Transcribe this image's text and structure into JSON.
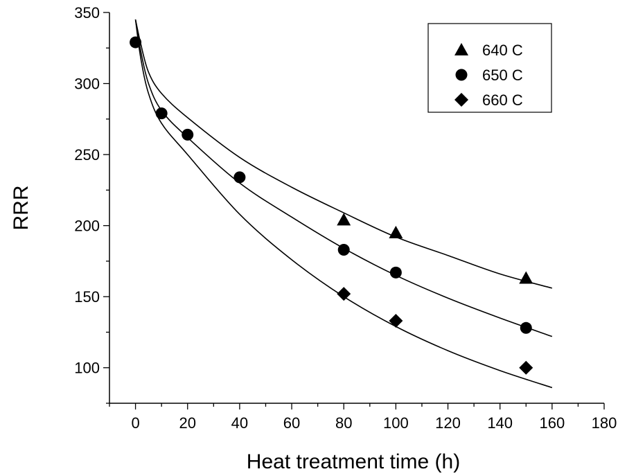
{
  "chart_data": {
    "type": "scatter",
    "xlabel": "Heat treatment time (h)",
    "ylabel": "RRR",
    "xlim": [
      -10,
      180
    ],
    "ylim": [
      75,
      350
    ],
    "x_ticks": [
      0,
      20,
      40,
      60,
      80,
      100,
      120,
      140,
      160,
      180
    ],
    "y_ticks": [
      100,
      150,
      200,
      250,
      300,
      350
    ],
    "x_minor_step": 10,
    "y_minor_step": 25,
    "grid": false,
    "legend_position": "top-right",
    "series": [
      {
        "name": "640 C",
        "marker": "triangle",
        "points": [
          [
            80,
            204
          ],
          [
            100,
            195
          ],
          [
            150,
            163
          ]
        ],
        "fit_curve": [
          [
            0,
            345
          ],
          [
            2,
            328
          ],
          [
            5,
            308
          ],
          [
            10,
            293
          ],
          [
            20,
            276
          ],
          [
            40,
            248
          ],
          [
            60,
            227
          ],
          [
            80,
            209
          ],
          [
            100,
            192
          ],
          [
            120,
            179
          ],
          [
            140,
            166
          ],
          [
            160,
            156
          ]
        ]
      },
      {
        "name": "650 C",
        "marker": "circle",
        "points": [
          [
            0,
            329
          ],
          [
            10,
            279
          ],
          [
            20,
            264
          ],
          [
            40,
            234
          ],
          [
            80,
            183
          ],
          [
            100,
            167
          ],
          [
            150,
            128
          ]
        ],
        "fit_curve": [
          [
            0,
            345
          ],
          [
            2,
            323
          ],
          [
            5,
            300
          ],
          [
            10,
            281
          ],
          [
            20,
            262
          ],
          [
            40,
            230
          ],
          [
            60,
            206
          ],
          [
            80,
            184
          ],
          [
            100,
            165
          ],
          [
            120,
            149
          ],
          [
            140,
            135
          ],
          [
            160,
            122
          ]
        ]
      },
      {
        "name": "660 C",
        "marker": "diamond",
        "points": [
          [
            80,
            152
          ],
          [
            100,
            133
          ],
          [
            150,
            100
          ]
        ],
        "fit_curve": [
          [
            0,
            345
          ],
          [
            2,
            318
          ],
          [
            5,
            293
          ],
          [
            10,
            272
          ],
          [
            20,
            250
          ],
          [
            40,
            208
          ],
          [
            60,
            176
          ],
          [
            80,
            150
          ],
          [
            100,
            129
          ],
          [
            120,
            112
          ],
          [
            140,
            98
          ],
          [
            160,
            86
          ]
        ]
      }
    ]
  }
}
